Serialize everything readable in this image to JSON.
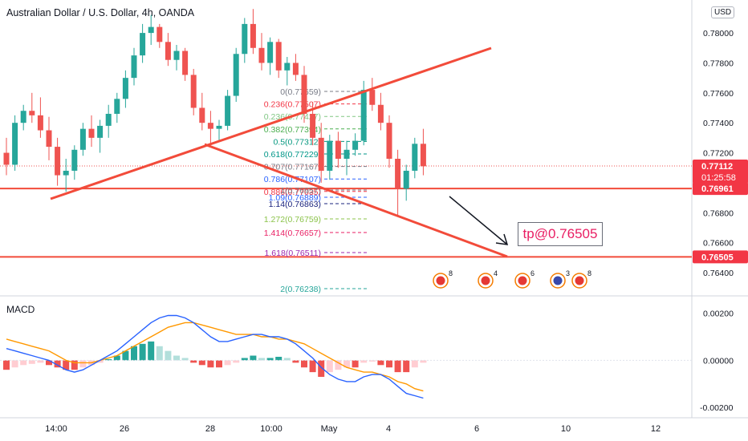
{
  "header": {
    "symbol_title": "Australian Dollar / U.S. Dollar, 4h, OANDA",
    "currency": "USD"
  },
  "indicator": {
    "name": "MACD"
  },
  "annotation": {
    "target_text": "tp@0.76505"
  },
  "colors": {
    "up": "#26a69a",
    "down": "#ef5350",
    "trend_line": "#f24b3a",
    "macd_line": "#2962ff",
    "signal_line": "#ff9800",
    "hist_pos_strong": "#26a69a",
    "hist_pos_weak": "#b2dfdb",
    "hist_neg_strong": "#ef5350",
    "hist_neg_weak": "#ffcdd2"
  },
  "chart_data": [
    {
      "type": "candlestick",
      "y_axis": {
        "range": [
          0.7625,
          0.7822
        ],
        "ticks": [
          "0.78000",
          "0.77800",
          "0.77600",
          "0.77400",
          "0.77200",
          "0.76800",
          "0.76600",
          "0.76400"
        ]
      },
      "x_axis": {
        "ticks": [
          "14:00",
          "26",
          "28",
          "10:00",
          "May",
          "4",
          "6",
          "10",
          "12"
        ]
      },
      "price_labels": [
        {
          "value": 0.77112,
          "text": "0.77112",
          "sub": "01:25:58",
          "color": "#f23645"
        },
        {
          "value": 0.76961,
          "text": "0.76961",
          "color": "#f23645"
        },
        {
          "value": 0.76505,
          "text": "0.76505",
          "color": "#f23645"
        }
      ],
      "horizontal_lines": [
        0.76961,
        0.76505
      ],
      "trend_lines": [
        {
          "from": [
            0.5,
            0.769
          ],
          "to": [
            48,
            0.78
          ]
        },
        {
          "from": [
            20,
            0.7728
          ],
          "to": [
            49.5,
            0.7649
          ]
        }
      ],
      "fibonacci": [
        {
          "label": "0(0.77659)",
          "color": "#787b86"
        },
        {
          "label": "0.236(0.77507)",
          "color": "#f23645"
        },
        {
          "label": "0.236(0.77427)",
          "color": "#81c784"
        },
        {
          "label": "0.382(0.77394)",
          "color": "#4caf50"
        },
        {
          "label": "0.5(0.77312)",
          "color": "#089981"
        },
        {
          "label": "0.618(0.77229)",
          "color": "#009688"
        },
        {
          "label": "0.707(0.77167)",
          "color": "#787b86"
        },
        {
          "label": "0.786(0.77107)",
          "color": "#2962ff"
        },
        {
          "label": "0.886(0.77035)",
          "color": "#f23645"
        },
        {
          "label": "1(0.76957)",
          "color": "#787b86"
        },
        {
          "label": "1.09(0.76889)",
          "color": "#2962ff"
        },
        {
          "label": "1.14(0.76863)",
          "color": "#1a237e"
        },
        {
          "label": "1.272(0.76759)",
          "color": "#8bc34a"
        },
        {
          "label": "1.414(0.76657)",
          "color": "#e91e63"
        },
        {
          "label": "1.618(0.76511)",
          "color": "#9c27b0"
        },
        {
          "label": "2(0.76238)",
          "color": "#26a69a"
        }
      ],
      "candles": [
        [
          0.772,
          0.773,
          0.7705,
          0.7712
        ],
        [
          0.7712,
          0.7745,
          0.7708,
          0.774
        ],
        [
          0.774,
          0.7752,
          0.7735,
          0.7748
        ],
        [
          0.7748,
          0.776,
          0.774,
          0.7745
        ],
        [
          0.7745,
          0.7757,
          0.773,
          0.7735
        ],
        [
          0.7735,
          0.7744,
          0.7715,
          0.7724
        ],
        [
          0.7724,
          0.773,
          0.7698,
          0.7705
        ],
        [
          0.7705,
          0.7716,
          0.7694,
          0.7708
        ],
        [
          0.7708,
          0.7725,
          0.7702,
          0.7722
        ],
        [
          0.7722,
          0.774,
          0.7718,
          0.7736
        ],
        [
          0.7736,
          0.7745,
          0.7724,
          0.773
        ],
        [
          0.773,
          0.7742,
          0.772,
          0.7738
        ],
        [
          0.7738,
          0.7752,
          0.773,
          0.7746
        ],
        [
          0.7746,
          0.776,
          0.774,
          0.7756
        ],
        [
          0.7756,
          0.7775,
          0.775,
          0.777
        ],
        [
          0.777,
          0.779,
          0.7765,
          0.7785
        ],
        [
          0.7785,
          0.7806,
          0.778,
          0.78
        ],
        [
          0.78,
          0.7812,
          0.7792,
          0.7804
        ],
        [
          0.7804,
          0.7806,
          0.779,
          0.7794
        ],
        [
          0.7794,
          0.78,
          0.7778,
          0.7782
        ],
        [
          0.7782,
          0.7792,
          0.7775,
          0.7788
        ],
        [
          0.7788,
          0.779,
          0.7768,
          0.7772
        ],
        [
          0.7772,
          0.7776,
          0.7745,
          0.775
        ],
        [
          0.775,
          0.776,
          0.7735,
          0.774
        ],
        [
          0.774,
          0.7748,
          0.7725,
          0.7736
        ],
        [
          0.7736,
          0.7742,
          0.7728,
          0.7738
        ],
        [
          0.7738,
          0.7762,
          0.7735,
          0.7758
        ],
        [
          0.7758,
          0.779,
          0.7754,
          0.7786
        ],
        [
          0.7786,
          0.781,
          0.778,
          0.7806
        ],
        [
          0.7806,
          0.7816,
          0.7786,
          0.779
        ],
        [
          0.779,
          0.78,
          0.7775,
          0.778
        ],
        [
          0.778,
          0.7797,
          0.7772,
          0.7794
        ],
        [
          0.7794,
          0.7796,
          0.777,
          0.7775
        ],
        [
          0.7775,
          0.7784,
          0.7765,
          0.778
        ],
        [
          0.778,
          0.7786,
          0.7768,
          0.7772
        ],
        [
          0.7772,
          0.7778,
          0.774,
          0.7746
        ],
        [
          0.7746,
          0.7754,
          0.7725,
          0.773
        ],
        [
          0.773,
          0.774,
          0.77,
          0.7708
        ],
        [
          0.7708,
          0.7732,
          0.7702,
          0.7728
        ],
        [
          0.7728,
          0.7734,
          0.771,
          0.7716
        ],
        [
          0.7716,
          0.7728,
          0.7705,
          0.7722
        ],
        [
          0.7722,
          0.7733,
          0.7718,
          0.7728
        ],
        [
          0.7728,
          0.7768,
          0.7725,
          0.7762
        ],
        [
          0.7762,
          0.777,
          0.7748,
          0.7752
        ],
        [
          0.7752,
          0.776,
          0.7735,
          0.774
        ],
        [
          0.774,
          0.7745,
          0.771,
          0.7716
        ],
        [
          0.7716,
          0.7722,
          0.7678,
          0.7696
        ],
        [
          0.7696,
          0.7712,
          0.7688,
          0.7708
        ],
        [
          0.7708,
          0.773,
          0.7703,
          0.7726
        ],
        [
          0.7726,
          0.7736,
          0.7705,
          0.7711
        ]
      ],
      "events": [
        {
          "count": "8"
        },
        {
          "count": "4"
        },
        {
          "count": "6"
        },
        {
          "count": "3"
        },
        {
          "count": "8"
        }
      ]
    },
    {
      "type": "macd",
      "y_axis": {
        "range": [
          -0.0024,
          0.0027
        ],
        "ticks": [
          "0.00200",
          "0.00000",
          "-0.00200"
        ]
      },
      "histogram": [
        -0.0004,
        -0.0003,
        -0.0002,
        -0.00015,
        -0.0001,
        -0.0002,
        -0.0003,
        -0.0004,
        -0.0004,
        -0.0003,
        -0.0002,
        -0.0001,
        5e-05,
        0.0002,
        0.0004,
        0.0006,
        0.0007,
        0.0008,
        0.0006,
        0.0004,
        0.0002,
        0.0001,
        -0.0001,
        -0.0002,
        -0.0003,
        -0.0003,
        -0.0002,
        -0.0001,
        0.0001,
        0.0002,
        0.0001,
        0.0001,
        0.00015,
        0.0001,
        -0.0001,
        -0.0003,
        -0.0005,
        -0.0007,
        -0.0005,
        -0.0004,
        -0.0003,
        -0.0003,
        -0.0001,
        -5e-05,
        -0.0002,
        -0.0003,
        -0.0005,
        -0.0005,
        -0.0003,
        -0.0001
      ],
      "macd": [
        0.0005,
        0.0004,
        0.0003,
        0.0002,
        0.0001,
        0.0,
        -0.0002,
        -0.0004,
        -0.0005,
        -0.0004,
        -0.0002,
        0.0,
        0.0002,
        0.0004,
        0.0007,
        0.001,
        0.0013,
        0.0016,
        0.0018,
        0.0019,
        0.0019,
        0.0018,
        0.0016,
        0.0013,
        0.001,
        0.0008,
        0.0008,
        0.0009,
        0.001,
        0.0011,
        0.0011,
        0.001,
        0.001,
        0.0009,
        0.0007,
        0.0004,
        0.0001,
        -0.0003,
        -0.0006,
        -0.0008,
        -0.0009,
        -0.0009,
        -0.0007,
        -0.0006,
        -0.0006,
        -0.0008,
        -0.0011,
        -0.0014,
        -0.0015,
        -0.0016
      ],
      "signal": [
        0.0009,
        0.0008,
        0.0007,
        0.0006,
        0.0005,
        0.0004,
        0.0002,
        0.0,
        -0.0001,
        -0.0001,
        -0.0001,
        0.0,
        0.0001,
        0.0002,
        0.0004,
        0.0006,
        0.0008,
        0.001,
        0.0012,
        0.0014,
        0.0015,
        0.0016,
        0.0016,
        0.0015,
        0.0014,
        0.0013,
        0.0012,
        0.0011,
        0.0011,
        0.0011,
        0.001,
        0.001,
        0.0009,
        0.0009,
        0.0008,
        0.0007,
        0.0005,
        0.0003,
        0.0001,
        -0.0001,
        -0.0003,
        -0.0004,
        -0.0005,
        -0.0005,
        -0.0006,
        -0.0007,
        -0.0009,
        -0.001,
        -0.0012,
        -0.0013
      ]
    }
  ]
}
